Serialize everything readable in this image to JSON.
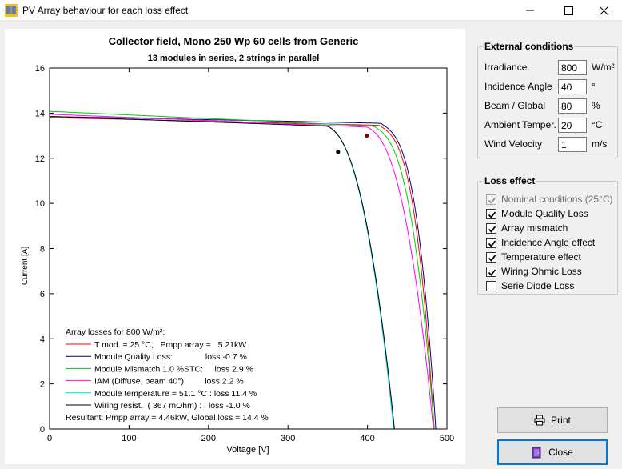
{
  "window": {
    "title": "PV Array behaviour for each loss effect"
  },
  "colors": {
    "nominal": "#ff0000",
    "module_quality": "#000080",
    "mismatch": "#00cc00",
    "iam": "#ff00ff",
    "temperature": "#00d8d8",
    "wiring": "#000000",
    "mpp_marker_nominal": "#800000",
    "mpp_marker_final": "#000000"
  },
  "external_conditions": {
    "title": "External conditions",
    "fields": [
      {
        "label": "Irradiance",
        "value": "800",
        "unit": "W/m²"
      },
      {
        "label": "Incidence Angle",
        "value": "40",
        "unit": "°"
      },
      {
        "label": "Beam / Global",
        "value": "80",
        "unit": "%"
      },
      {
        "label": "Ambient Temper.",
        "value": "20",
        "unit": "°C"
      },
      {
        "label": "Wind Velocity",
        "value": "1",
        "unit": "m/s"
      }
    ]
  },
  "loss_effect": {
    "title": "Loss effect",
    "items": [
      {
        "label": "Nominal conditions (25°C)",
        "checked": true,
        "disabled": true
      },
      {
        "label": "Module Quality Loss",
        "checked": true,
        "disabled": false
      },
      {
        "label": "Array mismatch",
        "checked": true,
        "disabled": false
      },
      {
        "label": "Incidence Angle effect",
        "checked": true,
        "disabled": false
      },
      {
        "label": "Temperature effect",
        "checked": true,
        "disabled": false
      },
      {
        "label": "Wiring Ohmic Loss",
        "checked": true,
        "disabled": false
      },
      {
        "label": "Serie Diode Loss",
        "checked": false,
        "disabled": false
      }
    ]
  },
  "buttons": {
    "print": "Print",
    "close": "Close"
  },
  "chart_data": {
    "type": "line",
    "title": "Collector field, Mono 250 Wp  60 cells from Generic",
    "subtitle": "13 modules in series, 2 strings in parallel",
    "xlabel": "Voltage [V]",
    "ylabel": "Current [A]",
    "xlim": [
      0,
      500
    ],
    "ylim": [
      0,
      16
    ],
    "x_ticks": [
      0,
      100,
      200,
      300,
      400,
      500
    ],
    "y_ticks": [
      0,
      2,
      4,
      6,
      8,
      10,
      12,
      14,
      16
    ],
    "legend_heading": "Array losses for  800 W/m²:",
    "legend": [
      {
        "text": "T mod. = 25 °C,   Pmpp array =   5.21kW",
        "color": "#ff0000"
      },
      {
        "text": "Module Quality Loss:              loss -0.7 %",
        "color": "#000080"
      },
      {
        "text": "Module Mismatch 1.0 %STC:     loss 2.9 %",
        "color": "#00cc00"
      },
      {
        "text": "IAM (Diffuse, beam 40°)         loss 2.2 %",
        "color": "#ff00ff"
      },
      {
        "text": "Module temperature = 51.1 °C : loss 11.4 %",
        "color": "#00d8d8"
      },
      {
        "text": "Wiring resist.  ( 367 mOhm) :   loss -1.0 %",
        "color": "#000000"
      }
    ],
    "legend_footer": "Resultant: Pmpp array =   4.46kW, Global loss = 14.4 %",
    "series": [
      {
        "color": "#ff0000",
        "isc": 13.8,
        "slope": 0.0008,
        "voc": 484,
        "knee": 415,
        "k": 3.2
      },
      {
        "color": "#000080",
        "isc": 13.85,
        "slope": 0.0007,
        "voc": 486,
        "knee": 417,
        "k": 3.2
      },
      {
        "color": "#00cc00",
        "isc": 14.08,
        "slope": 0.0016,
        "voc": 484,
        "knee": 408,
        "k": 2.9
      },
      {
        "color": "#ff00ff",
        "isc": 13.95,
        "slope": 0.0014,
        "voc": 483,
        "knee": 400,
        "k": 2.5
      },
      {
        "color": "#00d8d8",
        "isc": 13.85,
        "slope": 0.0012,
        "voc": 433,
        "knee": 350,
        "k": 2.4
      },
      {
        "color": "#000000",
        "isc": 13.85,
        "slope": 0.0012,
        "voc": 434,
        "knee": 350,
        "k": 2.4
      }
    ],
    "mpp_points": [
      {
        "x": 399,
        "y": 13.0,
        "color": "#800000"
      },
      {
        "x": 363,
        "y": 12.28,
        "color": "#000000"
      }
    ]
  }
}
